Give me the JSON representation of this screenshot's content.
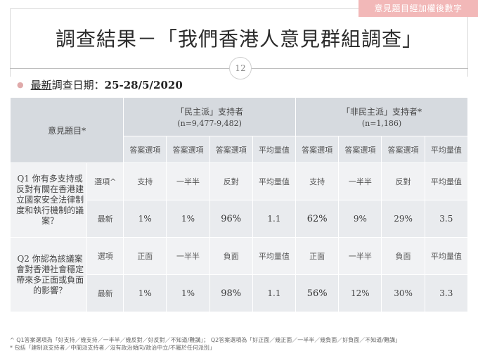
{
  "corner_tag": "意見題目經加權後數字",
  "title": "調查結果－「我們香港人意見群組調查」",
  "page_number": "12",
  "date_label": "最新調查日期：",
  "date_label_underlined": "最新",
  "date_label_rest": "調查日期：",
  "date_value": "25-28/5/2020",
  "table": {
    "corner_header": "意見題目*",
    "group1": {
      "name": "「民主派」支持者",
      "n": "(n=9,477-9,482)"
    },
    "group2": {
      "name": "「非民主派」支持者*",
      "n": "(n=1,186)"
    },
    "subheaders": [
      "答案選項",
      "答案選項",
      "答案選項",
      "平均量值",
      "答案選項",
      "答案選項",
      "答案選項",
      "平均量值"
    ],
    "q1": {
      "text": "Q1 你有多支持或反對有關在香港建立國家安全法律制度和執行機制的議案？",
      "options_label": "選項^",
      "options": [
        "支持",
        "一半半",
        "反對",
        "平均量值",
        "支持",
        "一半半",
        "反對",
        "平均量值"
      ],
      "latest_label": "最新",
      "values": [
        "1%",
        "1%",
        "96%",
        "1.1",
        "62%",
        "9%",
        "29%",
        "3.5"
      ]
    },
    "q2": {
      "text": "Q2 你認為該議案會對香港社會穩定帶來多正面或負面的影響？",
      "options_label": "選項",
      "options": [
        "正面",
        "一半半",
        "負面",
        "平均量值",
        "正面",
        "一半半",
        "負面",
        "平均量值"
      ],
      "latest_label": "最新",
      "values": [
        "1%",
        "1%",
        "98%",
        "1.1",
        "56%",
        "12%",
        "30%",
        "3.3"
      ]
    }
  },
  "footnotes": [
    "^ Q1答案選項為「好支持／幾支持／一半半／幾反對／好反對／不知道/難講」； Q2答案選項為「好正面／幾正面／一半半／幾負面／好負面／不知道/難講」",
    "* 包括「建制派支持者／中間派支持者／沒有政治傾向/政治中立/不屬於任何派別」"
  ]
}
